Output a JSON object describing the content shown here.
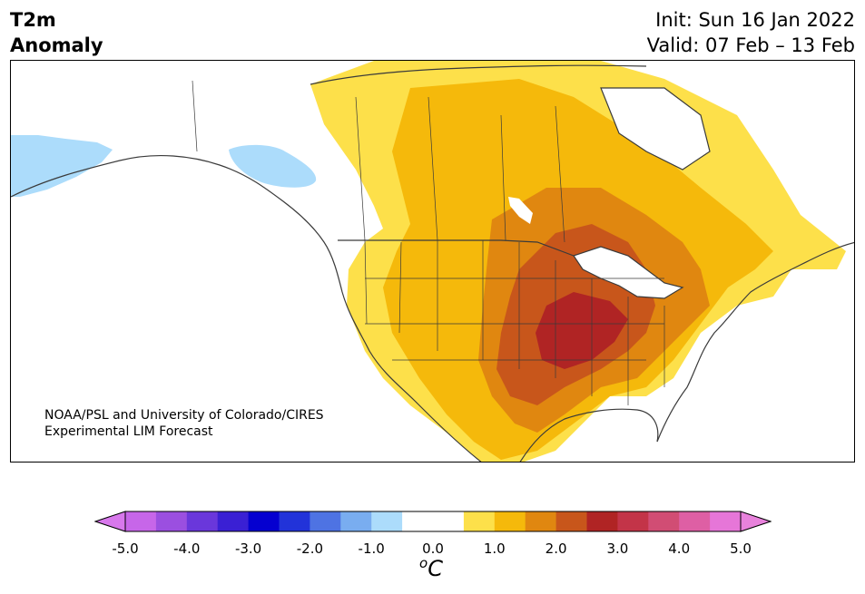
{
  "header": {
    "title_line1": "T2m",
    "title_line2": "Anomaly",
    "init": "Init: Sun 16 Jan 2022",
    "valid": "Valid: 07 Feb – 13 Feb"
  },
  "credit": {
    "line1": "NOAA/PSL and University of Colorado/CIRES",
    "line2": "Experimental LIM Forecast"
  },
  "colorbar": {
    "ticks": [
      "-5.0",
      "-4.0",
      "-3.0",
      "-2.0",
      "-1.0",
      "0.0",
      "1.0",
      "2.0",
      "3.0",
      "4.0",
      "5.0"
    ],
    "unit_sup": "o",
    "unit": "C",
    "colors": [
      "#c766e9",
      "#9b4fe0",
      "#6a37db",
      "#3a20d4",
      "#0500d0",
      "#2233d9",
      "#4e73e3",
      "#79adf0",
      "#acdcfb",
      "#ffffff",
      "#ffffff",
      "#fde04a",
      "#f5b90b",
      "#e08710",
      "#c8561b",
      "#b02424",
      "#c33448",
      "#d14d74",
      "#de5fa4",
      "#e676d8"
    ],
    "under_color": "#d878ec",
    "over_color": "#e882dc"
  }
}
